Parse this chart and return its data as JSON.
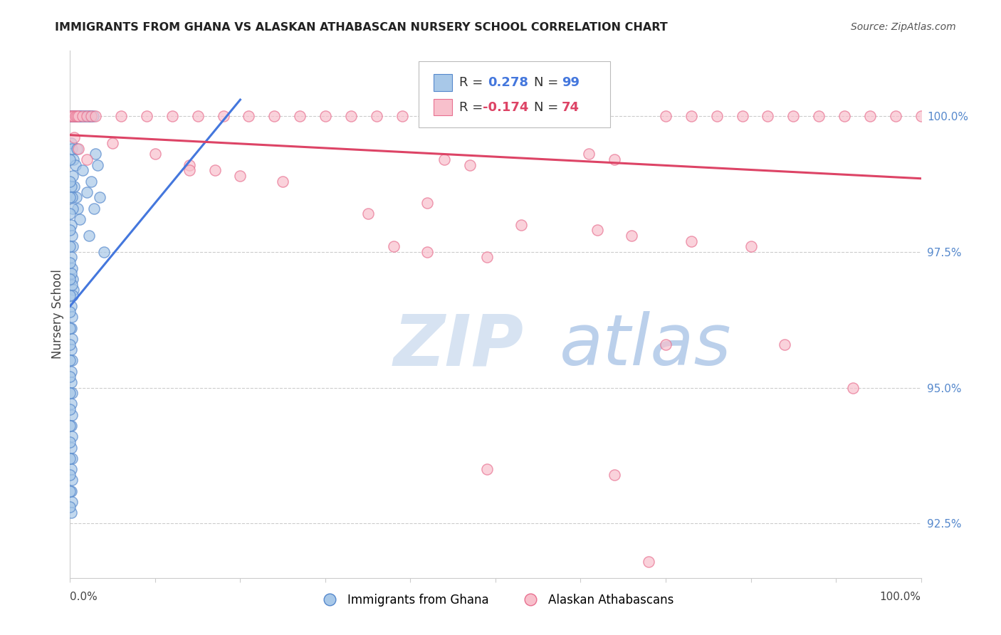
{
  "title": "IMMIGRANTS FROM GHANA VS ALASKAN ATHABASCAN NURSERY SCHOOL CORRELATION CHART",
  "source": "Source: ZipAtlas.com",
  "ylabel": "Nursery School",
  "legend_label_blue": "Immigrants from Ghana",
  "legend_label_pink": "Alaskan Athabascans",
  "xmin": 0.0,
  "xmax": 1.0,
  "ymin": 91.5,
  "ymax": 101.2,
  "yticks": [
    92.5,
    95.0,
    97.5,
    100.0
  ],
  "ytick_labels": [
    "92.5%",
    "95.0%",
    "97.5%",
    "100.0%"
  ],
  "blue_face": "#a8c8e8",
  "blue_edge": "#5588cc",
  "pink_face": "#f8c0cc",
  "pink_edge": "#e87090",
  "blue_line_color": "#4477dd",
  "pink_line_color": "#dd4466",
  "blue_scatter": [
    [
      0.0,
      100.0
    ],
    [
      0.001,
      100.0
    ],
    [
      0.002,
      100.0
    ],
    [
      0.003,
      100.0
    ],
    [
      0.004,
      100.0
    ],
    [
      0.005,
      100.0
    ],
    [
      0.006,
      100.0
    ],
    [
      0.007,
      100.0
    ],
    [
      0.008,
      100.0
    ],
    [
      0.009,
      100.0
    ],
    [
      0.01,
      100.0
    ],
    [
      0.011,
      100.0
    ],
    [
      0.013,
      100.0
    ],
    [
      0.015,
      100.0
    ],
    [
      0.017,
      100.0
    ],
    [
      0.019,
      100.0
    ],
    [
      0.021,
      100.0
    ],
    [
      0.023,
      100.0
    ],
    [
      0.025,
      100.0
    ],
    [
      0.027,
      100.0
    ],
    [
      0.001,
      99.5
    ],
    [
      0.002,
      99.4
    ],
    [
      0.004,
      99.2
    ],
    [
      0.006,
      99.1
    ],
    [
      0.008,
      99.4
    ],
    [
      0.003,
      98.9
    ],
    [
      0.005,
      98.7
    ],
    [
      0.007,
      98.5
    ],
    [
      0.009,
      98.3
    ],
    [
      0.011,
      98.1
    ],
    [
      0.001,
      98.7
    ],
    [
      0.002,
      98.5
    ],
    [
      0.003,
      98.3
    ],
    [
      0.001,
      98.0
    ],
    [
      0.002,
      97.8
    ],
    [
      0.003,
      97.6
    ],
    [
      0.001,
      97.4
    ],
    [
      0.002,
      97.2
    ],
    [
      0.003,
      97.0
    ],
    [
      0.004,
      96.8
    ],
    [
      0.001,
      97.1
    ],
    [
      0.002,
      96.9
    ],
    [
      0.003,
      96.7
    ],
    [
      0.001,
      96.5
    ],
    [
      0.002,
      96.3
    ],
    [
      0.001,
      96.1
    ],
    [
      0.002,
      95.9
    ],
    [
      0.001,
      95.7
    ],
    [
      0.002,
      95.5
    ],
    [
      0.001,
      95.3
    ],
    [
      0.001,
      95.1
    ],
    [
      0.002,
      94.9
    ],
    [
      0.001,
      94.7
    ],
    [
      0.002,
      94.5
    ],
    [
      0.001,
      94.3
    ],
    [
      0.002,
      94.1
    ],
    [
      0.001,
      93.9
    ],
    [
      0.002,
      93.7
    ],
    [
      0.001,
      93.5
    ],
    [
      0.002,
      93.3
    ],
    [
      0.001,
      93.1
    ],
    [
      0.002,
      92.9
    ],
    [
      0.001,
      92.7
    ],
    [
      0.0,
      99.2
    ],
    [
      0.0,
      98.8
    ],
    [
      0.0,
      98.5
    ],
    [
      0.0,
      98.2
    ],
    [
      0.0,
      97.9
    ],
    [
      0.0,
      97.6
    ],
    [
      0.0,
      97.3
    ],
    [
      0.0,
      97.0
    ],
    [
      0.0,
      96.7
    ],
    [
      0.0,
      96.4
    ],
    [
      0.0,
      96.1
    ],
    [
      0.0,
      95.8
    ],
    [
      0.0,
      95.5
    ],
    [
      0.0,
      95.2
    ],
    [
      0.0,
      94.9
    ],
    [
      0.0,
      94.6
    ],
    [
      0.0,
      94.3
    ],
    [
      0.0,
      94.0
    ],
    [
      0.0,
      93.7
    ],
    [
      0.0,
      93.4
    ],
    [
      0.0,
      93.1
    ],
    [
      0.0,
      92.8
    ],
    [
      0.03,
      99.3
    ],
    [
      0.025,
      98.8
    ],
    [
      0.02,
      98.6
    ],
    [
      0.015,
      99.0
    ],
    [
      0.028,
      98.3
    ],
    [
      0.022,
      97.8
    ],
    [
      0.035,
      98.5
    ],
    [
      0.04,
      97.5
    ],
    [
      0.032,
      99.1
    ]
  ],
  "pink_scatter": [
    [
      0.0,
      100.0
    ],
    [
      0.002,
      100.0
    ],
    [
      0.004,
      100.0
    ],
    [
      0.006,
      100.0
    ],
    [
      0.008,
      100.0
    ],
    [
      0.01,
      100.0
    ],
    [
      0.015,
      100.0
    ],
    [
      0.02,
      100.0
    ],
    [
      0.025,
      100.0
    ],
    [
      0.03,
      100.0
    ],
    [
      0.06,
      100.0
    ],
    [
      0.09,
      100.0
    ],
    [
      0.12,
      100.0
    ],
    [
      0.15,
      100.0
    ],
    [
      0.18,
      100.0
    ],
    [
      0.21,
      100.0
    ],
    [
      0.24,
      100.0
    ],
    [
      0.27,
      100.0
    ],
    [
      0.3,
      100.0
    ],
    [
      0.33,
      100.0
    ],
    [
      0.36,
      100.0
    ],
    [
      0.39,
      100.0
    ],
    [
      0.5,
      100.0
    ],
    [
      0.53,
      100.0
    ],
    [
      0.56,
      100.0
    ],
    [
      0.59,
      100.0
    ],
    [
      0.62,
      100.0
    ],
    [
      0.7,
      100.0
    ],
    [
      0.73,
      100.0
    ],
    [
      0.76,
      100.0
    ],
    [
      0.79,
      100.0
    ],
    [
      0.82,
      100.0
    ],
    [
      0.85,
      100.0
    ],
    [
      0.88,
      100.0
    ],
    [
      0.91,
      100.0
    ],
    [
      0.94,
      100.0
    ],
    [
      0.97,
      100.0
    ],
    [
      1.0,
      100.0
    ],
    [
      0.05,
      99.5
    ],
    [
      0.1,
      99.3
    ],
    [
      0.14,
      99.1
    ],
    [
      0.17,
      99.0
    ],
    [
      0.005,
      99.6
    ],
    [
      0.01,
      99.4
    ],
    [
      0.02,
      99.2
    ],
    [
      0.44,
      99.2
    ],
    [
      0.47,
      99.1
    ],
    [
      0.61,
      99.3
    ],
    [
      0.64,
      99.2
    ],
    [
      0.14,
      99.0
    ],
    [
      0.2,
      98.9
    ],
    [
      0.25,
      98.8
    ],
    [
      0.42,
      98.4
    ],
    [
      0.35,
      98.2
    ],
    [
      0.53,
      98.0
    ],
    [
      0.62,
      97.9
    ],
    [
      0.66,
      97.8
    ],
    [
      0.38,
      97.6
    ],
    [
      0.42,
      97.5
    ],
    [
      0.49,
      97.4
    ],
    [
      0.73,
      97.7
    ],
    [
      0.8,
      97.6
    ],
    [
      0.7,
      95.8
    ],
    [
      0.84,
      95.8
    ],
    [
      0.92,
      95.0
    ],
    [
      0.49,
      93.5
    ],
    [
      0.64,
      93.4
    ],
    [
      0.68,
      91.8
    ]
  ],
  "blue_line_x": [
    0.0,
    0.2
  ],
  "blue_line_y": [
    96.5,
    100.3
  ],
  "pink_line_x": [
    0.0,
    1.0
  ],
  "pink_line_y": [
    99.65,
    98.85
  ],
  "watermark_zip": "ZIP",
  "watermark_atlas": "atlas",
  "bg_color": "#ffffff",
  "grid_color": "#cccccc",
  "spine_color": "#cccccc",
  "title_color": "#222222",
  "ytick_color": "#5588cc",
  "source_color": "#555555"
}
